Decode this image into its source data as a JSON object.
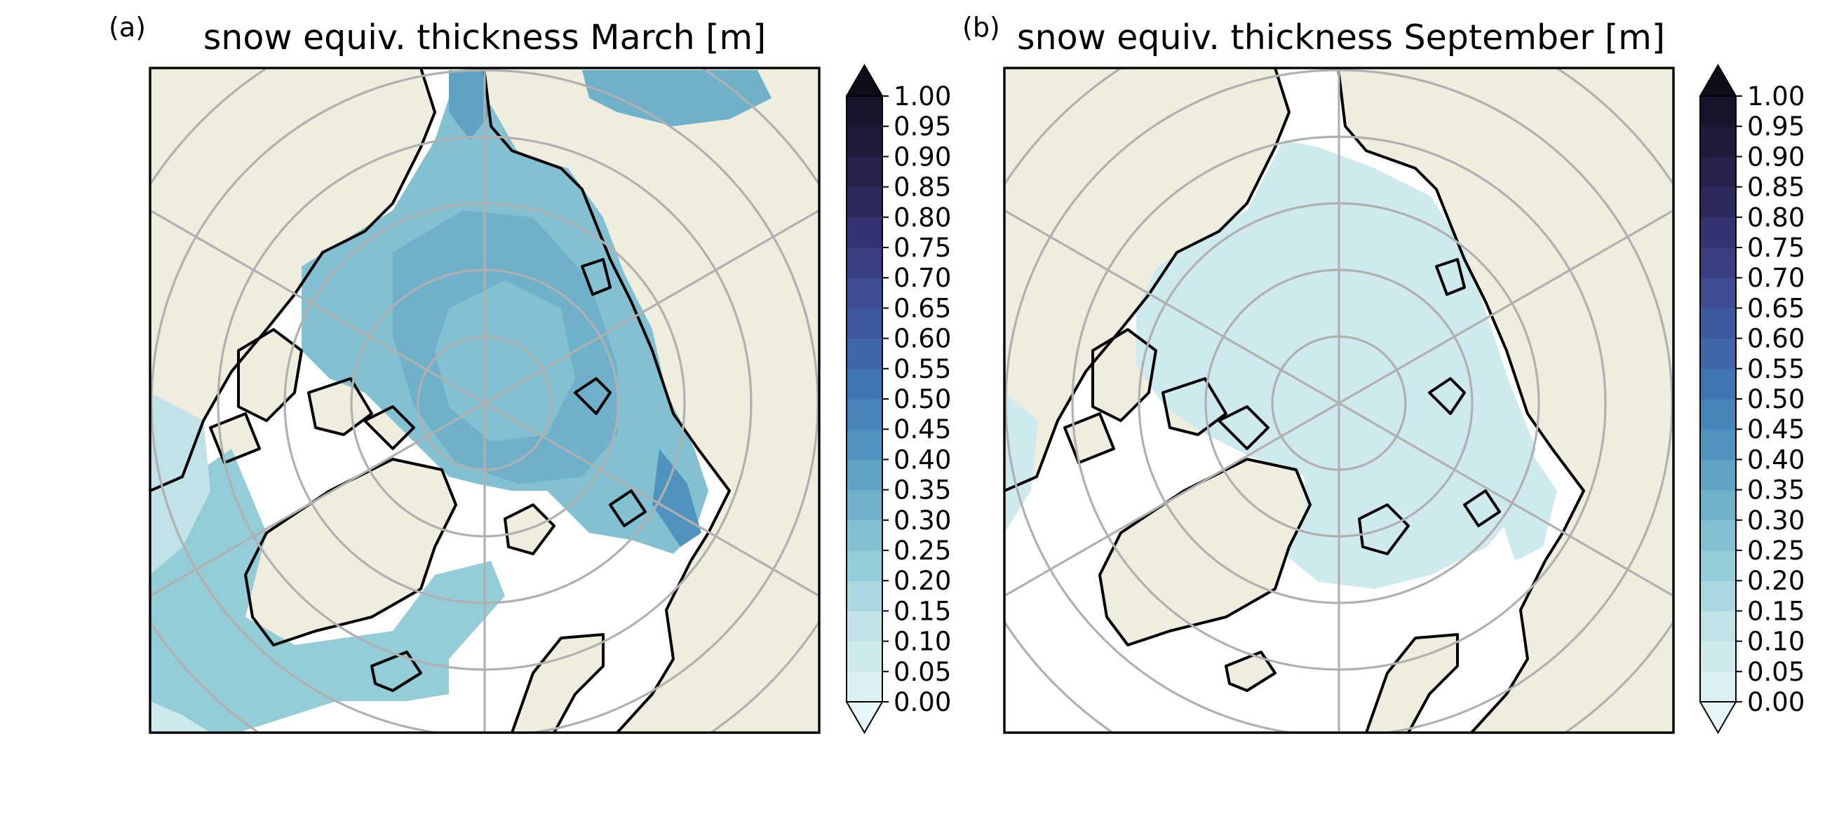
{
  "panels": [
    {
      "id": "a",
      "label": "(a)",
      "title": "snow equiv. thickness March [m]",
      "month": "March"
    },
    {
      "id": "b",
      "label": "(b)",
      "title": "snow equiv. thickness September [m]",
      "month": "September"
    }
  ],
  "colorbar": {
    "ticks": [
      "0.00",
      "0.05",
      "0.10",
      "0.15",
      "0.20",
      "0.25",
      "0.30",
      "0.35",
      "0.40",
      "0.45",
      "0.50",
      "0.55",
      "0.60",
      "0.65",
      "0.70",
      "0.75",
      "0.80",
      "0.85",
      "0.90",
      "0.95",
      "1.00"
    ],
    "extend": "both",
    "colors": [
      "#dbf0f3",
      "#cfeaee",
      "#c1e3e8",
      "#acd9e1",
      "#94ccd8",
      "#82c0d2",
      "#6fb1cb",
      "#5fa2c4",
      "#5193bf",
      "#4684ba",
      "#3f75b3",
      "#3f67aa",
      "#3f59a0",
      "#3d4c93",
      "#3a3f84",
      "#353472",
      "#2e2a5e",
      "#27224c",
      "#1f1b3b",
      "#17142b"
    ],
    "over_color": "#0d0d1a",
    "under_color": "#e6f6f8"
  },
  "colors": {
    "land": "#efedde",
    "ocean": "#ffffff",
    "coastline": "#000000",
    "gridline": "#b0b0b0"
  }
}
